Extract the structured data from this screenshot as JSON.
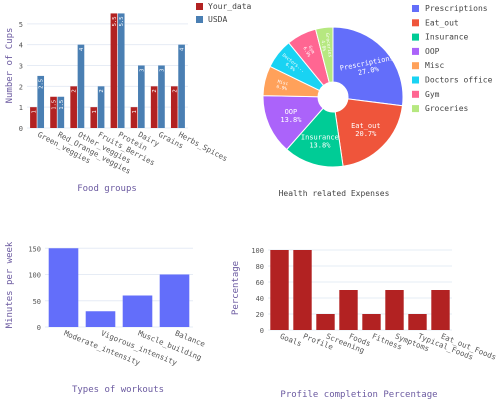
{
  "chart_data": [
    {
      "type": "bar",
      "ylabel": "Number of Cups",
      "xlabel": "Food groups",
      "categories": [
        "Green_veggies",
        "Red_Orange_veggies",
        "Other_veggies",
        "Fruits_Berries",
        "Protein",
        "Dairy",
        "Grains",
        "Herbs_Spices"
      ],
      "series": [
        {
          "name": "Your_data",
          "color": "#b22222",
          "values": [
            1,
            1.5,
            2,
            1,
            5.5,
            1,
            2,
            2
          ]
        },
        {
          "name": "USDA",
          "color": "#4a7fb3",
          "values": [
            2.5,
            1.5,
            4,
            2,
            5.5,
            3,
            3,
            4
          ]
        }
      ],
      "ylim": [
        0,
        6
      ],
      "yticks": [
        0,
        1,
        2,
        3,
        4,
        5
      ],
      "legend": "right",
      "grid": true
    },
    {
      "type": "pie",
      "xlabel": "Health related Expenses",
      "labels": [
        "Prescriptions",
        "Eat_out",
        "Insurance",
        "OOP",
        "Misc",
        "Doctors office",
        "Gym",
        "Groceries"
      ],
      "values": [
        27.0,
        20.7,
        13.8,
        13.8,
        6.9,
        6.9,
        6.9,
        4.0
      ],
      "slice_text": [
        "Prescriptions\n27.0%",
        "Eat_out\n20.7%",
        "Insurance\n13.8%",
        "OOP\n13.8%",
        "Misc\n6.9%",
        "Doctors...\n6.9%",
        "Gym\n6.9%",
        "Groceries\n4.0%"
      ],
      "colors": [
        "#636efa",
        "#ef553b",
        "#00cc96",
        "#ab63fa",
        "#ffa15a",
        "#19d3f3",
        "#ff6692",
        "#b6e880"
      ],
      "legend": "right",
      "hole": true
    },
    {
      "type": "bar",
      "ylabel": "Minutes per week",
      "xlabel": "Types of workouts",
      "categories": [
        "Moderate_intensity",
        "Vigorous_intensity",
        "Muscle_building",
        "Balance"
      ],
      "values": [
        150,
        30,
        60,
        100
      ],
      "color": "#636efa",
      "ylim": [
        0,
        160
      ],
      "yticks": [
        0,
        50,
        100,
        150
      ],
      "grid": true
    },
    {
      "type": "bar",
      "ylabel": "Percentage",
      "xlabel": "Profile completion Percentage",
      "categories": [
        "Goals",
        "Profile",
        "Screening",
        "Foods",
        "Fitness",
        "Symptoms",
        "Typical_Foods",
        "Eat_out_Foods"
      ],
      "values": [
        100,
        100,
        20,
        50,
        20,
        50,
        20,
        50
      ],
      "color": "#b22222",
      "ylim": [
        0,
        105
      ],
      "yticks": [
        0,
        20,
        40,
        60,
        80,
        100
      ],
      "grid": true
    }
  ]
}
